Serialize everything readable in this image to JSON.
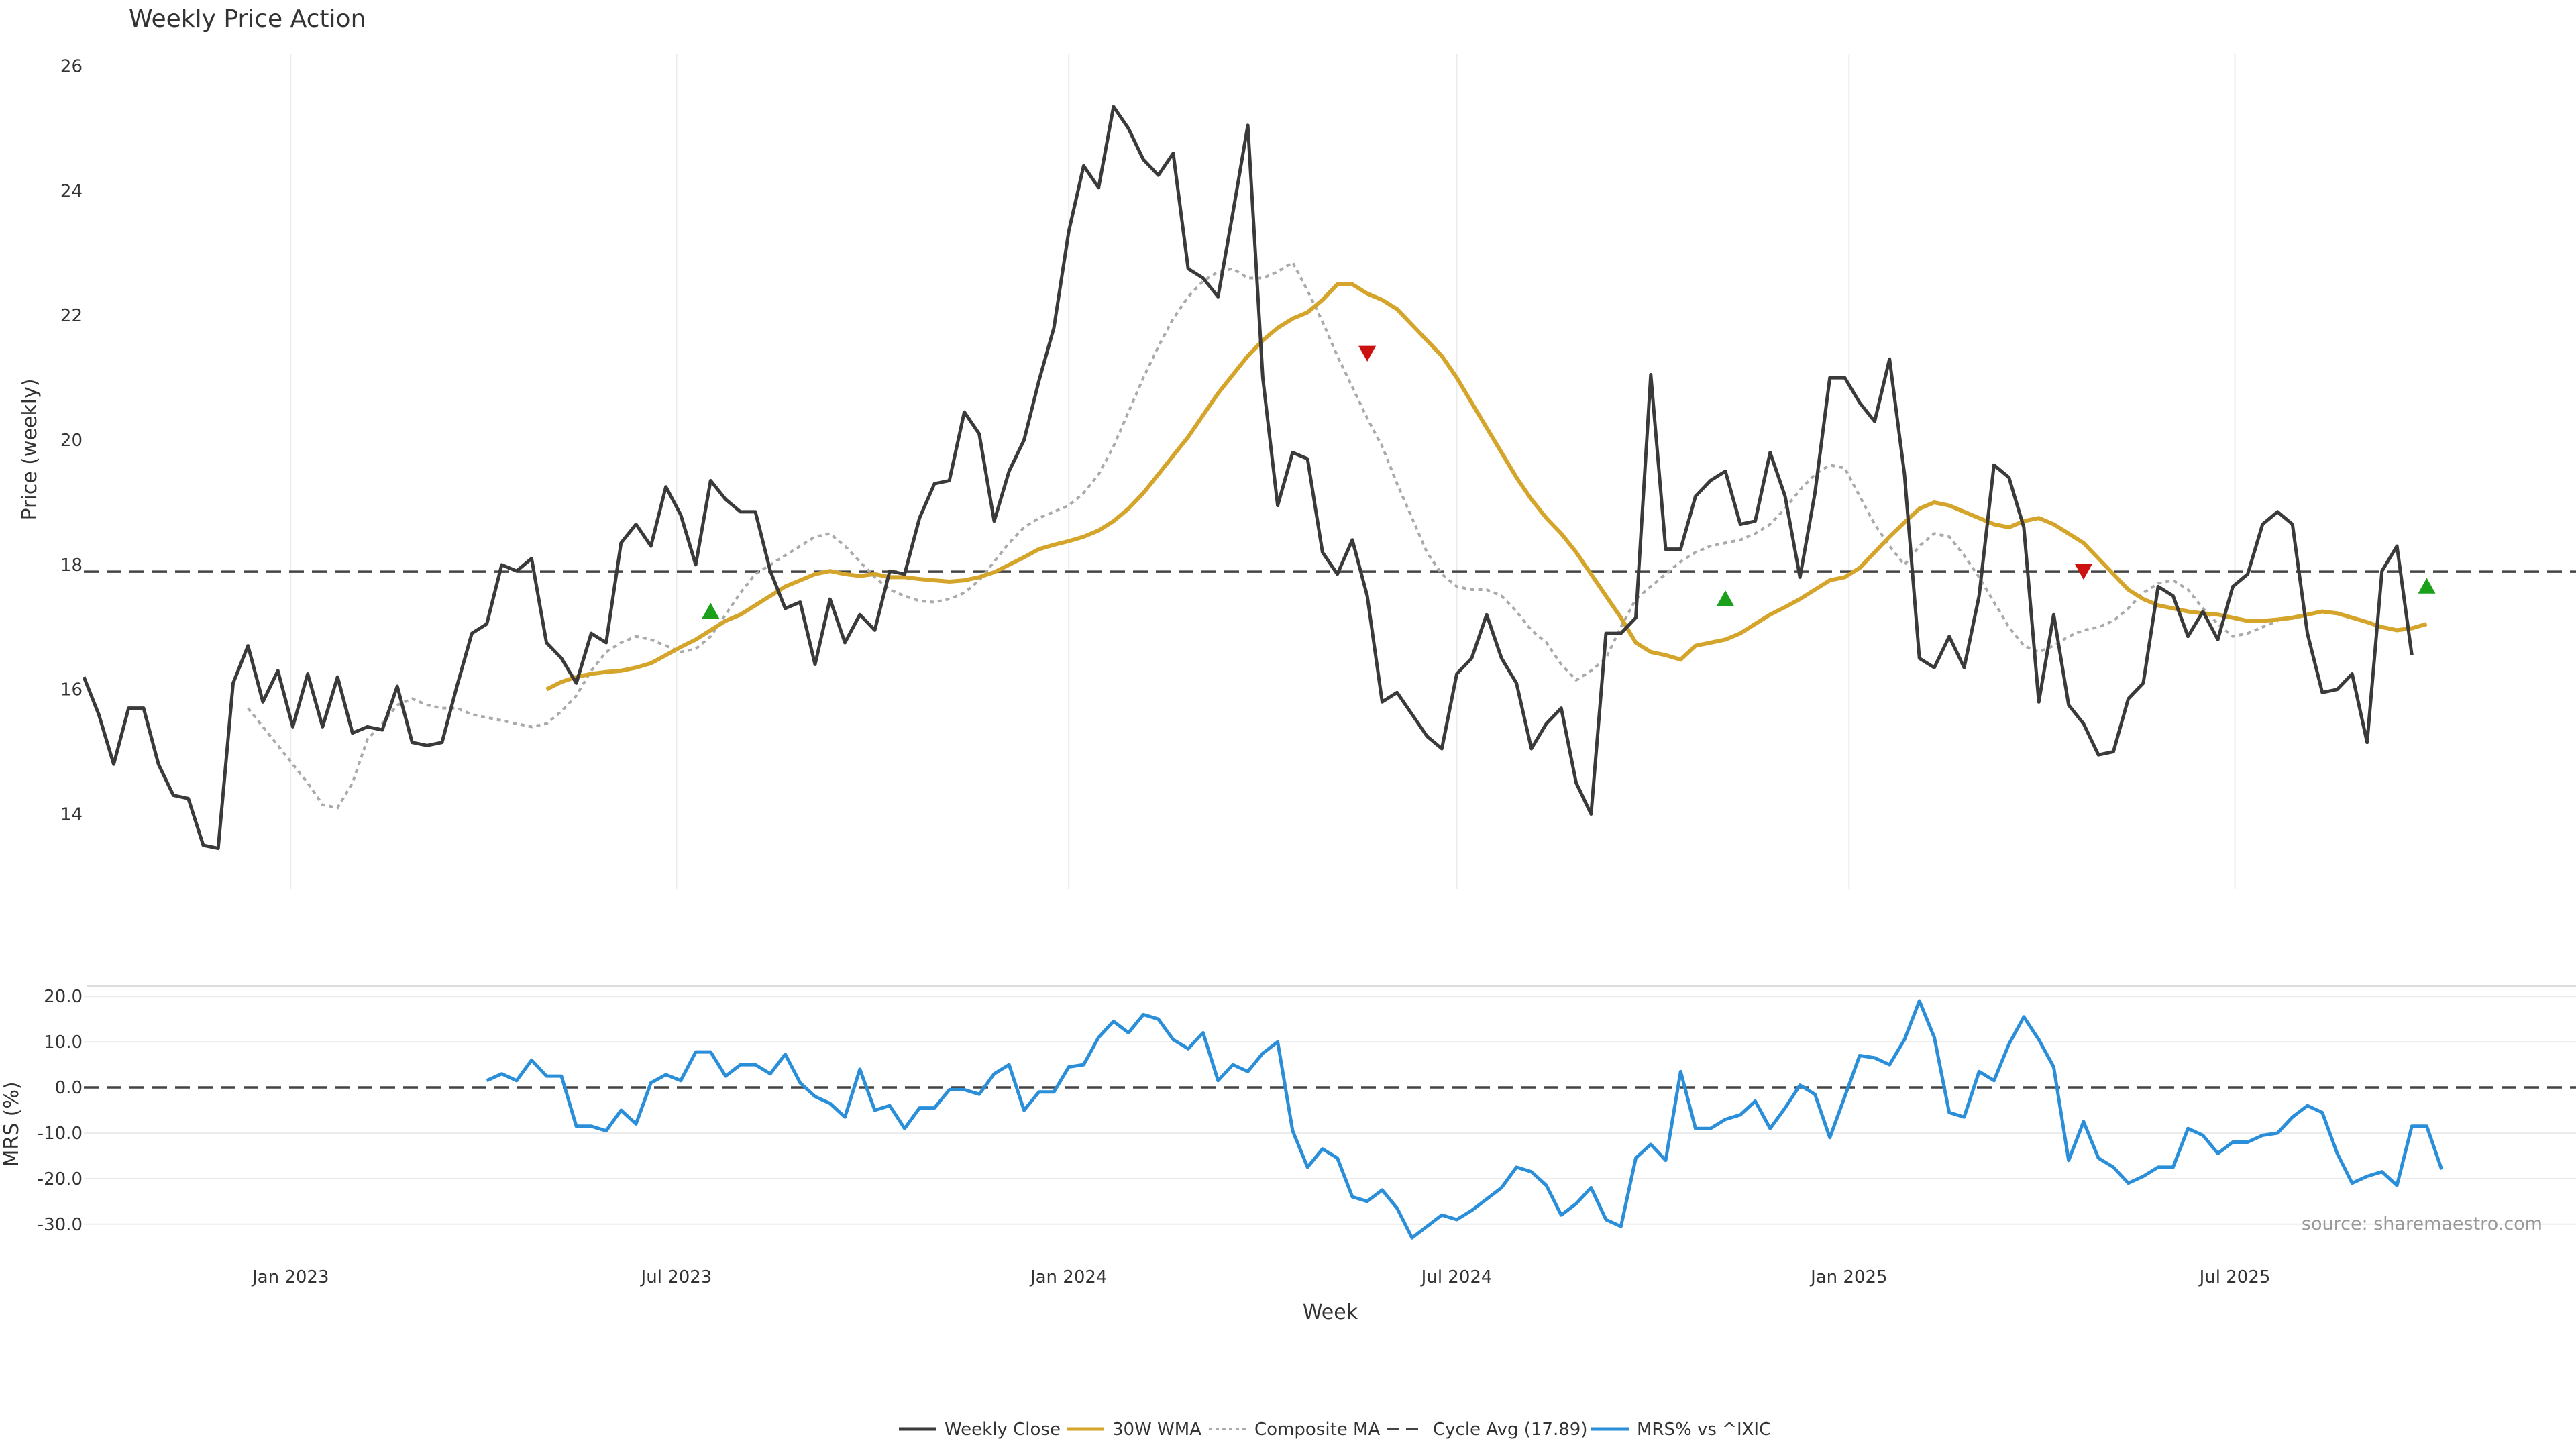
{
  "chart_data": {
    "type": "line",
    "title": "Weekly Price Action",
    "x_axis": {
      "label": "Week",
      "range": [
        "2022-09-26",
        "2025-12-08"
      ],
      "ticks": [
        {
          "date": "2023-01-01",
          "label": "Jan 2023"
        },
        {
          "date": "2023-07-01",
          "label": "Jul 2023"
        },
        {
          "date": "2024-01-01",
          "label": "Jan 2024"
        },
        {
          "date": "2024-07-01",
          "label": "Jul 2024"
        },
        {
          "date": "2025-01-01",
          "label": "Jan 2025"
        },
        {
          "date": "2025-07-01",
          "label": "Jul 2025"
        }
      ]
    },
    "price_panel": {
      "ylabel": "Price (weekly)",
      "ylim": [
        12.8,
        26.2
      ],
      "yticks": [
        "14",
        "16",
        "18",
        "20",
        "22",
        "24",
        "26"
      ],
      "grid": "vertical",
      "series": [
        {
          "name": "Weekly Close",
          "color": "#3a3a3a",
          "style": "solid",
          "start": "2022-09-26",
          "values": [
            16.2,
            15.6,
            14.8,
            15.7,
            15.7,
            14.8,
            14.3,
            14.25,
            13.5,
            13.45,
            16.1,
            16.7,
            15.8,
            16.3,
            15.4,
            16.25,
            15.4,
            16.2,
            15.3,
            15.4,
            15.35,
            16.05,
            15.15,
            15.1,
            15.15,
            16.05,
            16.9,
            17.05,
            18.0,
            17.9,
            18.1,
            16.75,
            16.5,
            16.1,
            16.9,
            16.75,
            18.35,
            18.65,
            18.3,
            19.25,
            18.8,
            18.0,
            19.35,
            19.05,
            18.85,
            18.85,
            17.9,
            17.3,
            17.4,
            16.4,
            17.45,
            16.75,
            17.2,
            16.95,
            17.9,
            17.85,
            18.75,
            19.3,
            19.35,
            20.45,
            20.1,
            18.7,
            19.5,
            20.0,
            20.95,
            21.8,
            23.35,
            24.4,
            24.05,
            25.35,
            25.0,
            24.5,
            24.25,
            24.6,
            22.75,
            22.6,
            22.3,
            23.65,
            25.05,
            21.0,
            18.95,
            19.8,
            19.7,
            18.2,
            17.85,
            18.4,
            17.5,
            15.8,
            15.95,
            15.6,
            15.25,
            15.05,
            16.25,
            16.5,
            17.2,
            16.5,
            16.1,
            15.05,
            15.45,
            15.7,
            14.5,
            14.0,
            16.9,
            16.9,
            17.15,
            21.05,
            18.25,
            18.25,
            19.1,
            19.35,
            19.5,
            18.65,
            18.7,
            19.8,
            19.1,
            17.8,
            19.15,
            21.0,
            21.0,
            20.6,
            20.3,
            21.3,
            19.45,
            16.5,
            16.35,
            16.85,
            16.35,
            17.5,
            19.6,
            19.4,
            18.6,
            15.8,
            17.2,
            15.75,
            15.45,
            14.95,
            15.0,
            15.85,
            16.1,
            17.65,
            17.5,
            16.85,
            17.25,
            16.8,
            17.65,
            17.85,
            18.65,
            18.85,
            18.65,
            16.9,
            15.95,
            16.0,
            16.25,
            15.15,
            17.9,
            18.3,
            16.55
          ]
        },
        {
          "name": "30W WMA",
          "color": "#d4a52a",
          "style": "solid",
          "start": "2023-05-01",
          "values": [
            16.0,
            16.12,
            16.2,
            16.25,
            16.28,
            16.3,
            16.35,
            16.42,
            16.55,
            16.68,
            16.8,
            16.95,
            17.1,
            17.2,
            17.35,
            17.5,
            17.65,
            17.75,
            17.85,
            17.9,
            17.85,
            17.82,
            17.85,
            17.8,
            17.8,
            17.77,
            17.75,
            17.73,
            17.75,
            17.8,
            17.88,
            18.0,
            18.12,
            18.25,
            18.32,
            18.38,
            18.45,
            18.55,
            18.7,
            18.9,
            19.15,
            19.45,
            19.75,
            20.05,
            20.4,
            20.75,
            21.05,
            21.35,
            21.6,
            21.8,
            21.95,
            22.05,
            22.25,
            22.5,
            22.5,
            22.35,
            22.25,
            22.1,
            21.85,
            21.6,
            21.35,
            21.0,
            20.6,
            20.2,
            19.8,
            19.4,
            19.05,
            18.75,
            18.5,
            18.2,
            17.85,
            17.5,
            17.15,
            16.75,
            16.6,
            16.55,
            16.48,
            16.7,
            16.75,
            16.8,
            16.9,
            17.05,
            17.2,
            17.32,
            17.45,
            17.6,
            17.75,
            17.8,
            17.95,
            18.2,
            18.45,
            18.68,
            18.9,
            19.0,
            18.95,
            18.85,
            18.75,
            18.65,
            18.6,
            18.7,
            18.75,
            18.65,
            18.5,
            18.35,
            18.1,
            17.85,
            17.6,
            17.45,
            17.35,
            17.3,
            17.25,
            17.22,
            17.2,
            17.15,
            17.1,
            17.1,
            17.12,
            17.15,
            17.2,
            17.25,
            17.22,
            17.15,
            17.08,
            17.0,
            16.95,
            16.98,
            17.05
          ]
        },
        {
          "name": "Composite MA",
          "color": "#aaaaaa",
          "style": "dotted",
          "start": "2022-12-12",
          "values": [
            15.7,
            15.4,
            15.1,
            14.8,
            14.5,
            14.15,
            14.1,
            14.5,
            15.2,
            15.45,
            15.75,
            15.85,
            15.75,
            15.7,
            15.7,
            15.6,
            15.55,
            15.5,
            15.45,
            15.4,
            15.45,
            15.65,
            15.9,
            16.3,
            16.6,
            16.75,
            16.85,
            16.8,
            16.7,
            16.6,
            16.65,
            16.85,
            17.2,
            17.55,
            17.85,
            18.0,
            18.15,
            18.3,
            18.45,
            18.5,
            18.3,
            18.05,
            17.8,
            17.6,
            17.5,
            17.42,
            17.4,
            17.45,
            17.55,
            17.75,
            18.05,
            18.35,
            18.6,
            18.75,
            18.85,
            18.95,
            19.15,
            19.45,
            19.9,
            20.45,
            21.0,
            21.5,
            21.95,
            22.3,
            22.55,
            22.7,
            22.75,
            22.6,
            22.6,
            22.7,
            22.85,
            22.4,
            21.9,
            21.35,
            20.85,
            20.35,
            19.9,
            19.3,
            18.75,
            18.2,
            17.85,
            17.65,
            17.6,
            17.6,
            17.5,
            17.25,
            16.95,
            16.75,
            16.4,
            16.15,
            16.3,
            16.5,
            17.0,
            17.45,
            17.65,
            17.85,
            18.05,
            18.2,
            18.3,
            18.35,
            18.4,
            18.5,
            18.65,
            18.9,
            19.2,
            19.45,
            19.6,
            19.55,
            19.1,
            18.65,
            18.3,
            18.0,
            18.3,
            18.5,
            18.45,
            18.15,
            17.8,
            17.4,
            17.0,
            16.7,
            16.6,
            16.7,
            16.85,
            16.95,
            17.0,
            17.1,
            17.3,
            17.55,
            17.7,
            17.75,
            17.6,
            17.3,
            17.05,
            16.85,
            16.9,
            17.0,
            17.1
          ]
        },
        {
          "name": "Cycle Avg (17.89)",
          "color": "#444444",
          "style": "dashed",
          "value": 17.89
        }
      ],
      "markers": [
        {
          "date": "2023-07-17",
          "value": 17.25,
          "type": "buy",
          "color": "#1aa01a"
        },
        {
          "date": "2024-05-20",
          "value": 21.4,
          "type": "sell",
          "color": "#cc1111"
        },
        {
          "date": "2024-11-04",
          "value": 17.45,
          "type": "buy",
          "color": "#1aa01a"
        },
        {
          "date": "2025-04-21",
          "value": 17.9,
          "type": "sell",
          "color": "#cc1111"
        },
        {
          "date": "2025-09-29",
          "value": 17.65,
          "type": "buy",
          "color": "#1aa01a"
        }
      ]
    },
    "mrs_panel": {
      "ylabel": "MRS (%)",
      "ylim": [
        -31.5,
        21.5
      ],
      "yticks": [
        "20.0",
        "10.0",
        "0.0",
        "-10.0",
        "-20.0",
        "-30.0"
      ],
      "grid": "horizontal",
      "zero_line": 0,
      "series": [
        {
          "name": "MRS% vs ^IXIC",
          "color": "#2a8fd8",
          "style": "solid",
          "start": "2023-04-03",
          "values": [
            1.5,
            3.0,
            1.5,
            6.0,
            2.5,
            2.5,
            -8.5,
            -8.5,
            -9.5,
            -5.0,
            -8.0,
            1.0,
            2.8,
            1.5,
            7.8,
            7.8,
            2.5,
            5.0,
            5.0,
            3.0,
            7.3,
            1.0,
            -2.0,
            -3.5,
            -6.5,
            4.0,
            -5.0,
            -4.0,
            -9.0,
            -4.5,
            -4.5,
            -0.5,
            -0.5,
            -1.5,
            3.0,
            5.0,
            -5.0,
            -1.0,
            -1.0,
            4.5,
            5.0,
            11.0,
            14.5,
            12.0,
            16.0,
            15.0,
            10.5,
            8.5,
            12.0,
            1.5,
            5.0,
            3.5,
            7.5,
            10.0,
            -9.5,
            -17.5,
            -13.5,
            -15.5,
            -24.0,
            -25.0,
            -22.5,
            -26.5,
            -33.0,
            -30.5,
            -28.0,
            -29.0,
            -27.0,
            -24.5,
            -22.0,
            -17.5,
            -18.5,
            -21.5,
            -28.0,
            -25.5,
            -22.0,
            -29.0,
            -30.5,
            -15.5,
            -12.5,
            -16.0,
            3.5,
            -9.0,
            -9.0,
            -7.0,
            -6.0,
            -3.0,
            -9.0,
            -4.5,
            0.5,
            -1.5,
            -11.0,
            -2.0,
            7.0,
            6.5,
            5.0,
            10.5,
            19.0,
            11.0,
            -5.5,
            -6.5,
            3.5,
            1.5,
            9.5,
            15.5,
            10.5,
            4.5,
            -16.0,
            -7.5,
            -15.5,
            -17.5,
            -21.0,
            -19.5,
            -17.5,
            -17.5,
            -9.0,
            -10.5,
            -14.5,
            -12.0,
            -12.0,
            -10.5,
            -10.0,
            -6.5,
            -4.0,
            -5.5,
            -14.5,
            -21.0,
            -19.5,
            -18.5,
            -21.5,
            -8.5,
            -8.5,
            -18.0
          ]
        }
      ]
    },
    "annotations": [
      {
        "text": "source: sharemaestro.com",
        "position": "bottom-right of MRS panel"
      }
    ],
    "legend": {
      "position": "bottom-center",
      "entries": [
        {
          "label": "Weekly Close",
          "color": "#3a3a3a",
          "style": "solid"
        },
        {
          "label": "30W WMA",
          "color": "#d4a52a",
          "style": "solid"
        },
        {
          "label": "Composite MA",
          "color": "#aaaaaa",
          "style": "dotted"
        },
        {
          "label": "Cycle Avg (17.89)",
          "color": "#444444",
          "style": "dashed"
        },
        {
          "label": "MRS% vs ^IXIC",
          "color": "#2a8fd8",
          "style": "solid"
        }
      ]
    }
  }
}
